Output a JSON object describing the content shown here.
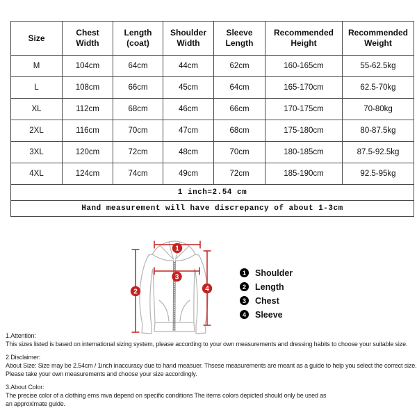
{
  "table": {
    "headers": [
      "Size",
      "Chest Width",
      "Length (coat)",
      "Shoulder Width",
      "Sleeve Length",
      "Recommended Height",
      "Recommended Weight"
    ],
    "rows": [
      [
        "M",
        "104cm",
        "64cm",
        "44cm",
        "62cm",
        "160-165cm",
        "55-62.5kg"
      ],
      [
        "L",
        "108cm",
        "66cm",
        "45cm",
        "64cm",
        "165-170cm",
        "62.5-70kg"
      ],
      [
        "XL",
        "112cm",
        "68cm",
        "46cm",
        "66cm",
        "170-175cm",
        "70-80kg"
      ],
      [
        "2XL",
        "116cm",
        "70cm",
        "47cm",
        "68cm",
        "175-180cm",
        "80-87.5kg"
      ],
      [
        "3XL",
        "120cm",
        "72cm",
        "48cm",
        "70cm",
        "180-185cm",
        "87.5-92.5kg"
      ],
      [
        "4XL",
        "124cm",
        "74cm",
        "49cm",
        "72cm",
        "185-190cm",
        "92.5-95kg"
      ]
    ],
    "notes": [
      "1 inch=2.54 cm",
      "Hand measurement will have discrepancy of about 1-3cm"
    ]
  },
  "diagram": {
    "legend": [
      {
        "num": "1",
        "label": "Shoulder"
      },
      {
        "num": "2",
        "label": "Length"
      },
      {
        "num": "3",
        "label": "Chest"
      },
      {
        "num": "4",
        "label": "Sleeve"
      }
    ]
  },
  "footnotes": [
    {
      "title": "1.Attention:",
      "lines": [
        "This sizes listed is based on international sizing system, please according to your own measurements and dressing habits to choose your suitable size."
      ]
    },
    {
      "title": "2.Disclaimer:",
      "lines": [
        "About Size: Size may be 2.54cm / 1inch inaccuracy due to hand measuer. Thsese measurements are meant as a guide to help you select the correct size.",
        "Please take your own measurements and choose your size accordingly."
      ]
    },
    {
      "title": "3.About Color:",
      "lines": [
        "The precise color of a clothing ems mva depend on specific conditions The items colors depicted should only be used as",
        "an approximate guide."
      ]
    }
  ],
  "colors": {
    "accent_red": "#c42222",
    "outline_gray": "#b5b5b5",
    "table_border": "#4a4a4a"
  }
}
